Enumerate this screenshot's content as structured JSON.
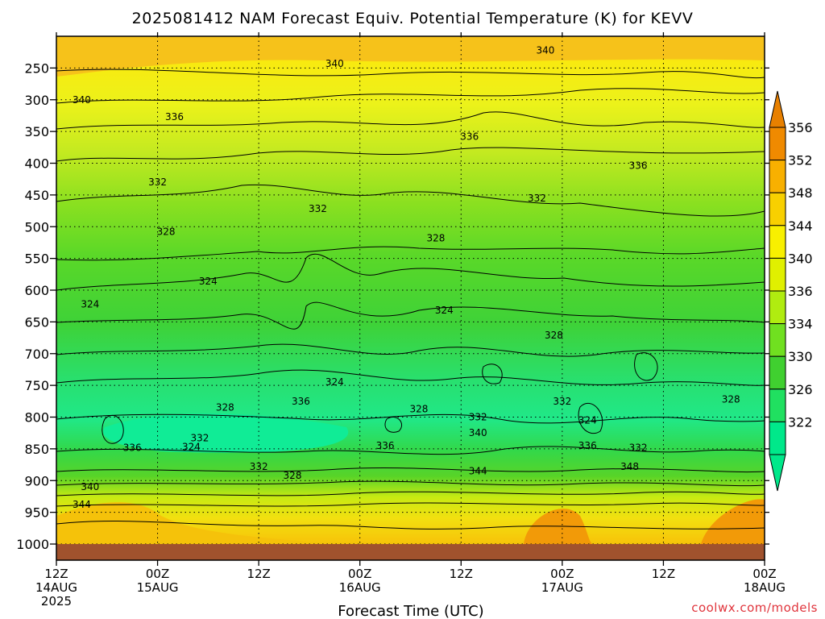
{
  "chart_data": {
    "type": "heatmap",
    "title": "2025081412 NAM Forecast Equiv. Potential Temperature (K) for KEVV",
    "xlabel": "Forecast Time (UTC)",
    "credit": "coolwx.com/models",
    "x_ticks": [
      {
        "hour": 0,
        "line1": "12Z",
        "line2": "14AUG",
        "line3": "2025"
      },
      {
        "hour": 12,
        "line1": "00Z",
        "line2": "15AUG",
        "line3": ""
      },
      {
        "hour": 24,
        "line1": "12Z",
        "line2": "",
        "line3": ""
      },
      {
        "hour": 36,
        "line1": "00Z",
        "line2": "16AUG",
        "line3": ""
      },
      {
        "hour": 48,
        "line1": "12Z",
        "line2": "",
        "line3": ""
      },
      {
        "hour": 60,
        "line1": "00Z",
        "line2": "17AUG",
        "line3": ""
      },
      {
        "hour": 72,
        "line1": "12Z",
        "line2": "",
        "line3": ""
      },
      {
        "hour": 84,
        "line1": "00Z",
        "line2": "18AUG",
        "line3": ""
      }
    ],
    "y_ticks": [
      250,
      300,
      350,
      400,
      450,
      500,
      550,
      600,
      650,
      700,
      750,
      800,
      850,
      900,
      950,
      1000
    ],
    "y_range_hpa": [
      200,
      1000
    ],
    "x_range_hours": [
      0,
      84
    ],
    "colorbar": {
      "labels": [
        322,
        326,
        330,
        334,
        336,
        340,
        344,
        348,
        352,
        356
      ],
      "colors": [
        "#00e88a",
        "#20e060",
        "#40d030",
        "#70e020",
        "#b0ec10",
        "#e0f000",
        "#f8f000",
        "#f8d000",
        "#f8b000",
        "#f08a00"
      ],
      "extend_low_color": "#00e88a",
      "extend_high_color": "#e88000"
    },
    "ground_color": "#a0522d",
    "contour_labels": [
      {
        "t": 3,
        "p": 300,
        "v": "340"
      },
      {
        "t": 14,
        "p": 327,
        "v": "336"
      },
      {
        "t": 33,
        "p": 243,
        "v": "340"
      },
      {
        "t": 58,
        "p": 222,
        "v": "340"
      },
      {
        "t": 49,
        "p": 358,
        "v": "336"
      },
      {
        "t": 69,
        "p": 404,
        "v": "336"
      },
      {
        "t": 12,
        "p": 430,
        "v": "332"
      },
      {
        "t": 31,
        "p": 472,
        "v": "332"
      },
      {
        "t": 57,
        "p": 455,
        "v": "332"
      },
      {
        "t": 13,
        "p": 508,
        "v": "328"
      },
      {
        "t": 45,
        "p": 518,
        "v": "328"
      },
      {
        "t": 18,
        "p": 586,
        "v": "324"
      },
      {
        "t": 4,
        "p": 622,
        "v": "324"
      },
      {
        "t": 46,
        "p": 632,
        "v": "324"
      },
      {
        "t": 59,
        "p": 671,
        "v": "328"
      },
      {
        "t": 33,
        "p": 745,
        "v": "324"
      },
      {
        "t": 29,
        "p": 775,
        "v": "336"
      },
      {
        "t": 20,
        "p": 785,
        "v": "328"
      },
      {
        "t": 43,
        "p": 787,
        "v": "328"
      },
      {
        "t": 50,
        "p": 800,
        "v": "332"
      },
      {
        "t": 60,
        "p": 775,
        "v": "332"
      },
      {
        "t": 63,
        "p": 805,
        "v": "324"
      },
      {
        "t": 80,
        "p": 772,
        "v": "328"
      },
      {
        "t": 17,
        "p": 833,
        "v": "332"
      },
      {
        "t": 16,
        "p": 847,
        "v": "324"
      },
      {
        "t": 9,
        "p": 848,
        "v": "336"
      },
      {
        "t": 39,
        "p": 845,
        "v": "336"
      },
      {
        "t": 50,
        "p": 825,
        "v": "340"
      },
      {
        "t": 63,
        "p": 845,
        "v": "336"
      },
      {
        "t": 69,
        "p": 848,
        "v": "332"
      },
      {
        "t": 24,
        "p": 878,
        "v": "332"
      },
      {
        "t": 28,
        "p": 892,
        "v": "328"
      },
      {
        "t": 50,
        "p": 885,
        "v": "344"
      },
      {
        "t": 68,
        "p": 878,
        "v": "348"
      },
      {
        "t": 4,
        "p": 910,
        "v": "340"
      },
      {
        "t": 3,
        "p": 938,
        "v": "344"
      }
    ]
  }
}
